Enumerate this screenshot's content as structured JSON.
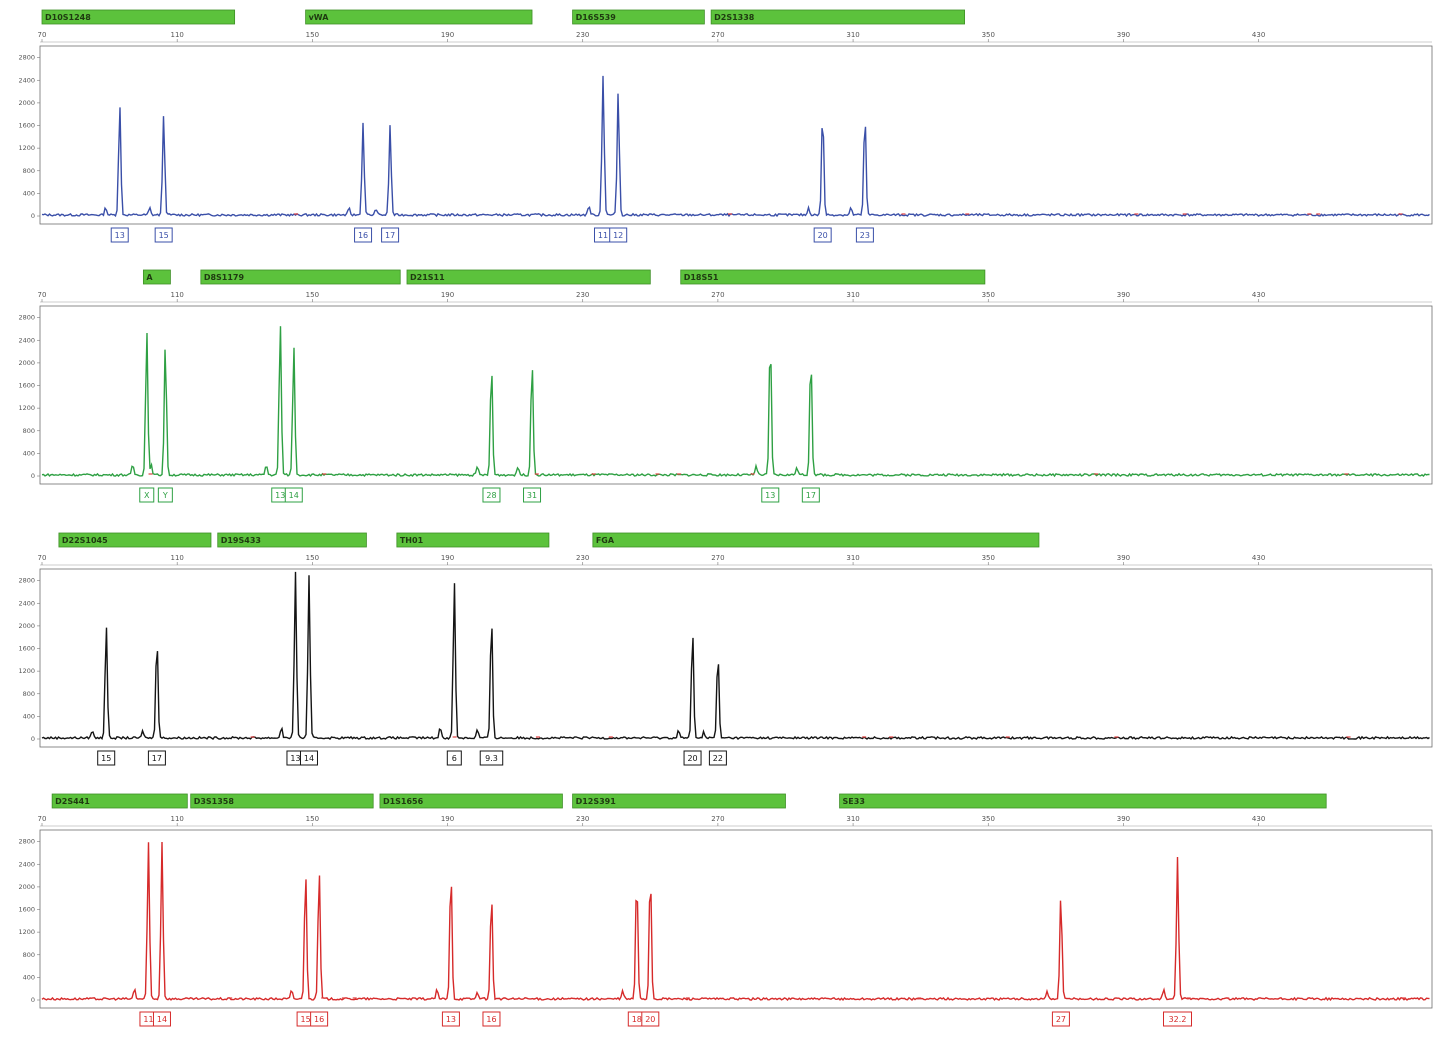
{
  "colors": {
    "marker_bar": "#5cc23c",
    "marker_bar_border": "#3e8f26",
    "marker_text": "#1e3a10",
    "frame": "#6f6f6f",
    "axis_text": "#555555",
    "baseline_noise": "#e04040"
  },
  "chart_data": [
    {
      "type": "line",
      "dye": "blue",
      "color": "#3a4fa8",
      "xlim": [
        70,
        460
      ],
      "ylim": [
        0,
        2900
      ],
      "x_ticks": [
        "70",
        "110",
        "150",
        "190",
        "230",
        "270",
        "310",
        "350",
        "390",
        "430"
      ],
      "y_ticks": [
        "0",
        "400",
        "800",
        "1200",
        "1600",
        "2000",
        "2400",
        "2800"
      ],
      "loci": [
        {
          "name": "D10S1248",
          "start": 70,
          "end": 127
        },
        {
          "name": "vWA",
          "start": 148,
          "end": 215
        },
        {
          "name": "D16S539",
          "start": 227,
          "end": 266
        },
        {
          "name": "D2S1338",
          "start": 268,
          "end": 343
        }
      ],
      "peaks": [
        {
          "x": 93,
          "height": 1950,
          "label": "13"
        },
        {
          "x": 106,
          "height": 1780,
          "label": "15"
        },
        {
          "x": 165,
          "height": 1630,
          "label": "16"
        },
        {
          "x": 173,
          "height": 1580,
          "label": "17"
        },
        {
          "x": 236,
          "height": 2400,
          "label": "11"
        },
        {
          "x": 240.5,
          "height": 2180,
          "label": "12"
        },
        {
          "x": 301,
          "height": 1830,
          "label": "20"
        },
        {
          "x": 313.5,
          "height": 1800,
          "label": "23"
        }
      ]
    },
    {
      "type": "line",
      "dye": "green",
      "color": "#2ea043",
      "xlim": [
        70,
        460
      ],
      "ylim": [
        0,
        2900
      ],
      "x_ticks": [
        "70",
        "110",
        "150",
        "190",
        "230",
        "270",
        "310",
        "350",
        "390",
        "430"
      ],
      "y_ticks": [
        "0",
        "400",
        "800",
        "1200",
        "1600",
        "2000",
        "2400",
        "2800"
      ],
      "loci": [
        {
          "name": "A",
          "start": 100,
          "end": 108
        },
        {
          "name": "D8S1179",
          "start": 117,
          "end": 176
        },
        {
          "name": "D21S11",
          "start": 178,
          "end": 250
        },
        {
          "name": "D18S51",
          "start": 259,
          "end": 349
        }
      ],
      "peaks": [
        {
          "x": 101,
          "height": 2580,
          "label": "X"
        },
        {
          "x": 106.5,
          "height": 2330,
          "label": "Y"
        },
        {
          "x": 140.5,
          "height": 2580,
          "label": "13"
        },
        {
          "x": 144.5,
          "height": 2300,
          "label": "14"
        },
        {
          "x": 203,
          "height": 1960,
          "label": "28"
        },
        {
          "x": 215,
          "height": 2050,
          "label": "31"
        },
        {
          "x": 285.5,
          "height": 2420,
          "label": "13"
        },
        {
          "x": 297.5,
          "height": 2150,
          "label": "17"
        }
      ]
    },
    {
      "type": "line",
      "dye": "black",
      "color": "#141414",
      "xlim": [
        70,
        460
      ],
      "ylim": [
        0,
        2900
      ],
      "x_ticks": [
        "70",
        "110",
        "150",
        "190",
        "230",
        "270",
        "310",
        "350",
        "390",
        "430"
      ],
      "y_ticks": [
        "0",
        "400",
        "800",
        "1200",
        "1600",
        "2000",
        "2400",
        "2800"
      ],
      "loci": [
        {
          "name": "D22S1045",
          "start": 75,
          "end": 120
        },
        {
          "name": "D19S433",
          "start": 122,
          "end": 166
        },
        {
          "name": "TH01",
          "start": 175,
          "end": 220
        },
        {
          "name": "FGA",
          "start": 233,
          "end": 365
        }
      ],
      "peaks": [
        {
          "x": 89,
          "height": 2030,
          "label": "15"
        },
        {
          "x": 104,
          "height": 1800,
          "label": "17"
        },
        {
          "x": 145,
          "height": 2780,
          "label": "13"
        },
        {
          "x": 149,
          "height": 2860,
          "label": "14"
        },
        {
          "x": 192,
          "height": 2770,
          "label": "6"
        },
        {
          "x": 203,
          "height": 2150,
          "label": "9.3"
        },
        {
          "x": 262.5,
          "height": 1910,
          "label": "20"
        },
        {
          "x": 270,
          "height": 1500,
          "label": "22"
        }
      ]
    },
    {
      "type": "line",
      "dye": "red",
      "color": "#d62a2a",
      "xlim": [
        70,
        460
      ],
      "ylim": [
        0,
        2900
      ],
      "x_ticks": [
        "70",
        "110",
        "150",
        "190",
        "230",
        "270",
        "310",
        "350",
        "390",
        "430"
      ],
      "y_ticks": [
        "0",
        "400",
        "800",
        "1200",
        "1600",
        "2000",
        "2400",
        "2800"
      ],
      "loci": [
        {
          "name": "D2S441",
          "start": 73,
          "end": 113
        },
        {
          "name": "D3S1358",
          "start": 114,
          "end": 168
        },
        {
          "name": "D1S1656",
          "start": 170,
          "end": 224
        },
        {
          "name": "D12S391",
          "start": 227,
          "end": 290
        },
        {
          "name": "SE33",
          "start": 306,
          "end": 450
        }
      ],
      "peaks": [
        {
          "x": 101.5,
          "height": 2600,
          "label": "11"
        },
        {
          "x": 105.5,
          "height": 2770,
          "label": "14"
        },
        {
          "x": 148,
          "height": 2150,
          "label": "15"
        },
        {
          "x": 152,
          "height": 2300,
          "label": "16"
        },
        {
          "x": 191,
          "height": 2300,
          "label": "13"
        },
        {
          "x": 203,
          "height": 1880,
          "label": "16"
        },
        {
          "x": 246,
          "height": 2030,
          "label": "18"
        },
        {
          "x": 250,
          "height": 2260,
          "label": "20"
        },
        {
          "x": 371.5,
          "height": 1850,
          "label": "27"
        },
        {
          "x": 406,
          "height": 2500,
          "label": "32.2"
        }
      ]
    }
  ]
}
